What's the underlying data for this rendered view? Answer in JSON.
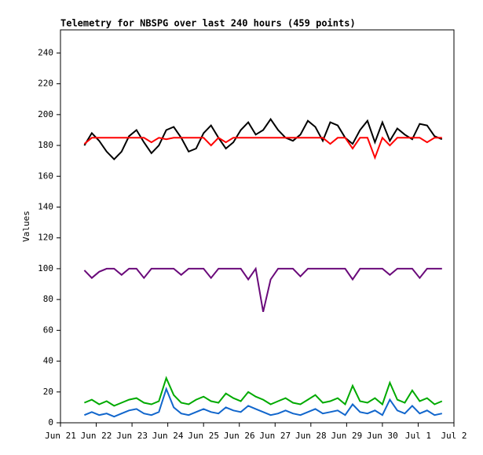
{
  "chart_data": {
    "type": "line",
    "title": "Telemetry for NBSPG over last 240 hours (459 points)",
    "y_label": "Values",
    "x": [
      16,
      21,
      26,
      31,
      36,
      41,
      46,
      51,
      56,
      61,
      66,
      71,
      76,
      81,
      86,
      91,
      96,
      101,
      106,
      111,
      116,
      121,
      126,
      131,
      136,
      141,
      146,
      151,
      156,
      161,
      166,
      171,
      176,
      181,
      186,
      191,
      196,
      201,
      206,
      211,
      216,
      221,
      226,
      231,
      236,
      241,
      246,
      251,
      256
    ],
    "xlim": [
      0,
      264
    ],
    "xticks": [
      {
        "value": 0,
        "label": "Jun 21"
      },
      {
        "value": 24,
        "label": "Jun 22"
      },
      {
        "value": 48,
        "label": "Jun 23"
      },
      {
        "value": 72,
        "label": "Jun 24"
      },
      {
        "value": 96,
        "label": "Jun 25"
      },
      {
        "value": 120,
        "label": "Jun 26"
      },
      {
        "value": 144,
        "label": "Jun 27"
      },
      {
        "value": 168,
        "label": "Jun 28"
      },
      {
        "value": 192,
        "label": "Jun 29"
      },
      {
        "value": 216,
        "label": "Jun 30"
      },
      {
        "value": 240,
        "label": "Jul 1"
      },
      {
        "value": 264,
        "label": "Jul 2"
      }
    ],
    "ylim": [
      0,
      255
    ],
    "yticks": [
      0,
      20,
      40,
      60,
      80,
      100,
      120,
      140,
      160,
      180,
      200,
      220,
      240
    ],
    "series": [
      {
        "color": "#000000",
        "values": [
          180,
          188,
          183,
          176,
          171,
          176,
          186,
          190,
          182,
          175,
          180,
          190,
          192,
          185,
          176,
          178,
          188,
          193,
          185,
          178,
          182,
          190,
          195,
          187,
          190,
          197,
          190,
          185,
          183,
          187,
          196,
          192,
          183,
          195,
          193,
          185,
          181,
          190,
          196,
          182,
          195,
          183,
          191,
          187,
          184,
          194,
          193,
          186,
          184
        ]
      },
      {
        "color": "#ff0000",
        "values": [
          181,
          185,
          185,
          185,
          185,
          185,
          185,
          185,
          185,
          182,
          185,
          184,
          185,
          185,
          185,
          185,
          185,
          180,
          185,
          182,
          185,
          185,
          185,
          185,
          185,
          185,
          185,
          185,
          185,
          185,
          185,
          185,
          185,
          181,
          185,
          185,
          178,
          185,
          185,
          172,
          185,
          180,
          185,
          185,
          185,
          185,
          182,
          185,
          185
        ]
      },
      {
        "color": "#6a0a7a",
        "values": [
          99,
          94,
          98,
          100,
          100,
          96,
          100,
          100,
          94,
          100,
          100,
          100,
          100,
          96,
          100,
          100,
          100,
          94,
          100,
          100,
          100,
          100,
          93,
          100,
          72,
          93,
          100,
          100,
          100,
          95,
          100,
          100,
          100,
          100,
          100,
          100,
          93,
          100,
          100,
          100,
          100,
          96,
          100,
          100,
          100,
          94,
          100,
          100,
          100
        ]
      },
      {
        "color": "#00aa00",
        "values": [
          13,
          15,
          12,
          14,
          11,
          13,
          15,
          16,
          13,
          12,
          14,
          29,
          18,
          13,
          12,
          15,
          17,
          14,
          13,
          19,
          16,
          14,
          20,
          17,
          15,
          12,
          14,
          16,
          13,
          12,
          15,
          18,
          13,
          14,
          16,
          12,
          24,
          14,
          13,
          16,
          12,
          26,
          15,
          13,
          21,
          14,
          16,
          12,
          14
        ]
      },
      {
        "color": "#1166cc",
        "values": [
          5,
          7,
          5,
          6,
          4,
          6,
          8,
          9,
          6,
          5,
          7,
          22,
          10,
          6,
          5,
          7,
          9,
          7,
          6,
          10,
          8,
          7,
          11,
          9,
          7,
          5,
          6,
          8,
          6,
          5,
          7,
          9,
          6,
          7,
          8,
          5,
          12,
          7,
          6,
          8,
          5,
          15,
          8,
          6,
          11,
          6,
          8,
          5,
          6
        ]
      }
    ]
  }
}
